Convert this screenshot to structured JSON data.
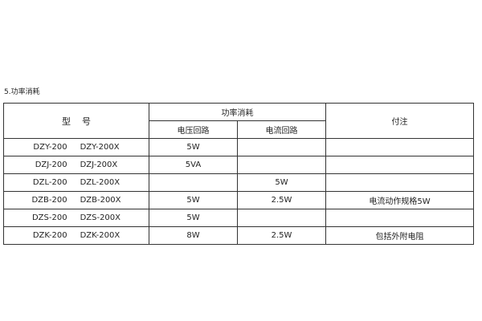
{
  "section_title": "5.功率消耗",
  "table": {
    "headers": {
      "model": [
        "型",
        "号"
      ],
      "power": "功率消耗",
      "voltage_circuit": "电压回路",
      "current_circuit": "电流回路",
      "note": "付注"
    },
    "rows": [
      {
        "model_a": "DZY-200",
        "model_b": "DZY-200X",
        "voltage": "5W",
        "current": "",
        "note": ""
      },
      {
        "model_a": "DZJ-200",
        "model_b": "DZJ-200X",
        "voltage": "5VA",
        "current": "",
        "note": ""
      },
      {
        "model_a": "DZL-200",
        "model_b": "DZL-200X",
        "voltage": "",
        "current": "5W",
        "note": ""
      },
      {
        "model_a": "DZB-200",
        "model_b": "DZB-200X",
        "voltage": "5W",
        "current": "2.5W",
        "note": "电流动作规格5W"
      },
      {
        "model_a": "DZS-200",
        "model_b": "DZS-200X",
        "voltage": "5W",
        "current": "",
        "note": ""
      },
      {
        "model_a": "DZK-200",
        "model_b": "DZK-200X",
        "voltage": "8W",
        "current": "2.5W",
        "note": "包括外附电阻"
      }
    ]
  }
}
